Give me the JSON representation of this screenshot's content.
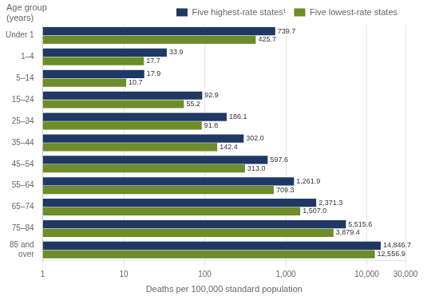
{
  "chart_data": {
    "type": "bar",
    "orientation": "horizontal",
    "categories": [
      "Under 1",
      "1–4",
      "5–14",
      "15–24",
      "25–34",
      "35–44",
      "45–54",
      "55–64",
      "65–74",
      "75–84",
      "85 and\nover"
    ],
    "series": [
      {
        "name": "Five highest-rate states¹",
        "color": "#1f3864",
        "values": [
          739.7,
          33.9,
          17.9,
          92.9,
          186.1,
          302.0,
          597.6,
          1261.9,
          2371.3,
          5515.6,
          14846.7
        ],
        "value_labels": [
          "739.7",
          "33.9",
          "17.9",
          "92.9",
          "186.1",
          "302.0",
          "597.6",
          "1,261.9",
          "2,371.3",
          "5,515.6",
          "14,846.7"
        ]
      },
      {
        "name": "Five lowest-rate states",
        "color": "#6d8c2a",
        "values": [
          425.7,
          17.7,
          10.7,
          55.2,
          91.8,
          142.4,
          313.0,
          709.3,
          1507.0,
          3879.4,
          12556.9
        ],
        "value_labels": [
          "425.7",
          "17.7",
          "10.7",
          "55.2",
          "91.8",
          "142.4",
          "313.0",
          "709.3",
          "1,507.0",
          "3,879.4",
          "12,556.9"
        ]
      }
    ],
    "xlabel": "Deaths per 100,000 standard population",
    "annotations": [
      "Age group\n(years)"
    ],
    "log": "x",
    "xlim": [
      1,
      30000
    ],
    "xticks": [
      1,
      10,
      100,
      {
        "value": 1000,
        "label": "1,000"
      },
      {
        "value": 10000,
        "label": "10,000"
      },
      {
        "value": 30000,
        "label": "30,000"
      }
    ],
    "grid": true,
    "legend": "upper right",
    "data_labels": true
  }
}
